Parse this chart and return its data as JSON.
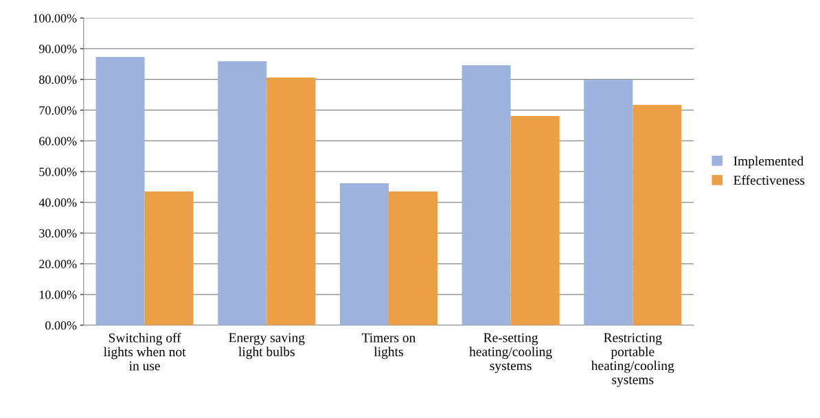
{
  "chart_data": {
    "type": "bar",
    "categories": [
      "Switching off\nlights when not\nin use",
      "Energy saving\nlight bulbs",
      "Timers on\nlights",
      "Re-setting\nheating/cooling\nsystems",
      "Restricting\nportable\nheating/cooling\nsystems"
    ],
    "series": [
      {
        "name": "Implemented",
        "color": "#9db3dd",
        "values": [
          0.873,
          0.859,
          0.462,
          0.846,
          0.799
        ]
      },
      {
        "name": "Effectiveness",
        "color": "#ed9f46",
        "values": [
          0.435,
          0.806,
          0.435,
          0.681,
          0.717
        ]
      }
    ],
    "ylim": [
      0,
      1
    ],
    "yticks": [
      {
        "value": 0,
        "label": "0.00%"
      },
      {
        "value": 0.1,
        "label": "10.00%"
      },
      {
        "value": 0.2,
        "label": "20.00%"
      },
      {
        "value": 0.3,
        "label": "30.00%"
      },
      {
        "value": 0.4,
        "label": "40.00%"
      },
      {
        "value": 0.5,
        "label": "50.00%"
      },
      {
        "value": 0.6,
        "label": "60.00%"
      },
      {
        "value": 0.7,
        "label": "70.00%"
      },
      {
        "value": 0.8,
        "label": "80.00%"
      },
      {
        "value": 0.9,
        "label": "90.00%"
      },
      {
        "value": 1,
        "label": "100.00%"
      }
    ],
    "grid": "y",
    "legend": "right"
  }
}
